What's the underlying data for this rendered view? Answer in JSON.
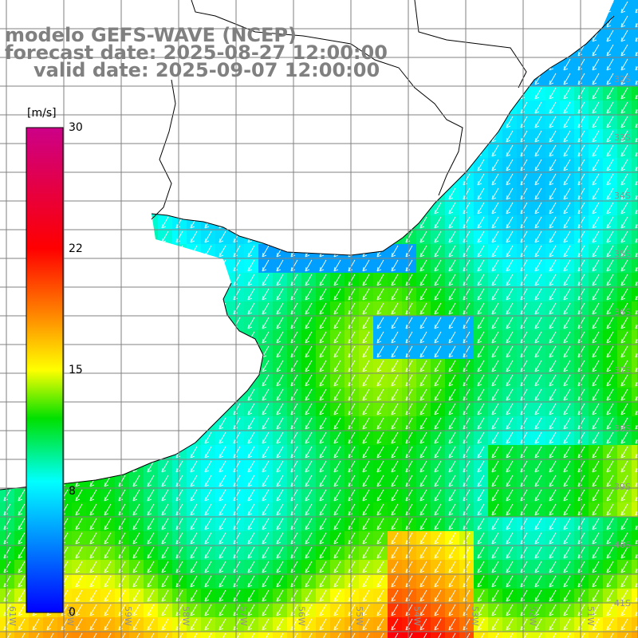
{
  "header": {
    "model": "modelo GEFS-WAVE (NCEP)",
    "forecast": "forecast date: 2025-08-27 12:00:00",
    "valid": "valid date: 2025-09-07 12:00:00"
  },
  "colorbar": {
    "unit": "[m/s]",
    "ticks": [
      "30",
      "22",
      "15",
      "8",
      "0"
    ],
    "tick_values": [
      30,
      22,
      15,
      8,
      0
    ],
    "range": [
      0,
      30
    ],
    "colors": [
      "#0000ff",
      "#00ffff",
      "#00e000",
      "#ffff00",
      "#ff8000",
      "#ff0000",
      "#cc0088"
    ]
  },
  "map": {
    "lon_labels": [
      "61W",
      "60W",
      "59W",
      "58W",
      "57W",
      "56W",
      "55W",
      "54W",
      "53W",
      "52W",
      "51W",
      "50W"
    ],
    "lat_labels": [
      "32S",
      "33S",
      "34S",
      "35S",
      "36S",
      "37S",
      "38S",
      "39S",
      "40S",
      "41S"
    ],
    "field": "wind speed with arrows",
    "land_color": "#ffffff",
    "grid_color": "#808080"
  }
}
